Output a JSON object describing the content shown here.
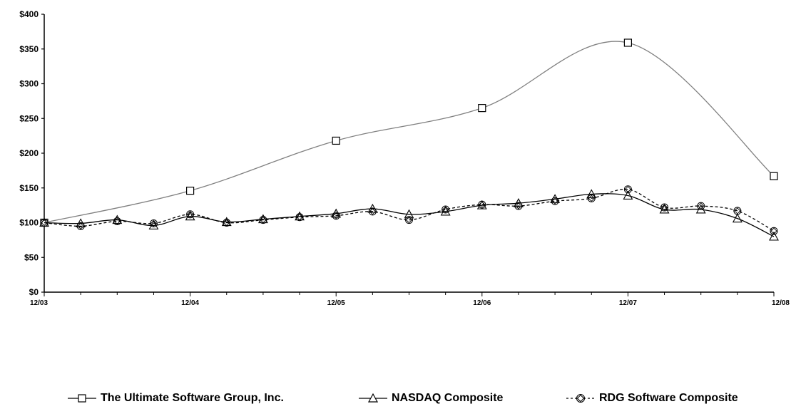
{
  "chart_data": {
    "type": "line",
    "title": "",
    "xlabel": "",
    "ylabel": "",
    "ylim": [
      0,
      400
    ],
    "yticks": [
      0,
      50,
      100,
      150,
      200,
      250,
      300,
      350,
      400
    ],
    "ytick_labels": [
      "$0",
      "$50",
      "$100",
      "$150",
      "$200",
      "$250",
      "$300",
      "$350",
      "$400"
    ],
    "xlim": [
      0,
      5
    ],
    "xticks": [
      0,
      1,
      2,
      3,
      4,
      5
    ],
    "xtick_labels": [
      "12/03",
      "12/04",
      "12/05",
      "12/06",
      "12/07",
      "12/08"
    ],
    "grid": false,
    "legend_position": "bottom",
    "series": [
      {
        "name": "The Ultimate Software Group, Inc.",
        "marker": "square",
        "line": "solid",
        "color": "#808080",
        "x": [
          0,
          1,
          2,
          3,
          4,
          5
        ],
        "y": [
          100,
          146,
          218,
          265,
          359,
          167
        ]
      },
      {
        "name": "NASDAQ Composite",
        "marker": "triangle",
        "line": "solid",
        "color": "#000000",
        "x": [
          0,
          0.25,
          0.5,
          0.75,
          1,
          1.25,
          1.5,
          1.75,
          2,
          2.25,
          2.5,
          2.75,
          3,
          3.25,
          3.5,
          3.75,
          4,
          4.25,
          4.5,
          4.75,
          5
        ],
        "y": [
          100,
          99,
          104,
          96,
          109,
          101,
          105,
          109,
          113,
          120,
          112,
          116,
          125,
          128,
          134,
          141,
          139,
          119,
          119,
          106,
          80
        ]
      },
      {
        "name": "RDG Software Composite",
        "marker": "diamond-circle",
        "line": "dashed",
        "color": "#000000",
        "x": [
          0,
          0.25,
          0.5,
          0.75,
          1,
          1.25,
          1.5,
          1.75,
          2,
          2.25,
          2.5,
          2.75,
          3,
          3.25,
          3.5,
          3.75,
          4,
          4.25,
          4.5,
          4.75,
          5
        ],
        "y": [
          100,
          95,
          102,
          99,
          112,
          100,
          104,
          108,
          110,
          116,
          104,
          119,
          126,
          124,
          131,
          135,
          148,
          122,
          124,
          117,
          88
        ]
      }
    ]
  }
}
